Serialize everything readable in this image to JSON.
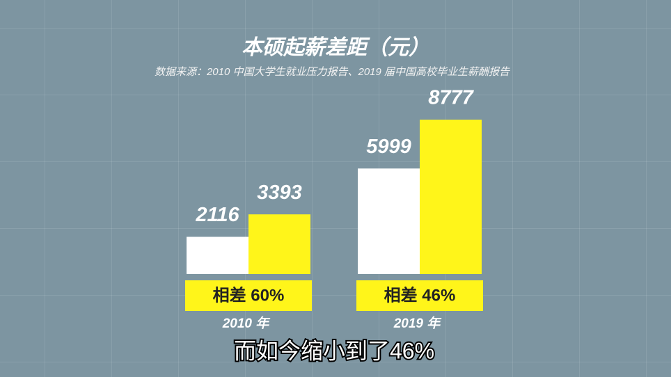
{
  "chart_data": {
    "type": "bar",
    "title": "本硕起薪差距（元）",
    "subtitle": "数据来源：2010 中国大学生就业压力报告、2019 届中国高校毕业生薪酬报告",
    "categories": [
      "2010 年",
      "2019 年"
    ],
    "series": [
      {
        "color": "#ffffff",
        "values": [
          2116,
          5999
        ]
      },
      {
        "color": "#fff51a",
        "values": [
          3393,
          8777
        ]
      }
    ],
    "annotations": [
      "相差 60%",
      "相差 46%"
    ],
    "caption": "而如今缩小到了46%"
  }
}
